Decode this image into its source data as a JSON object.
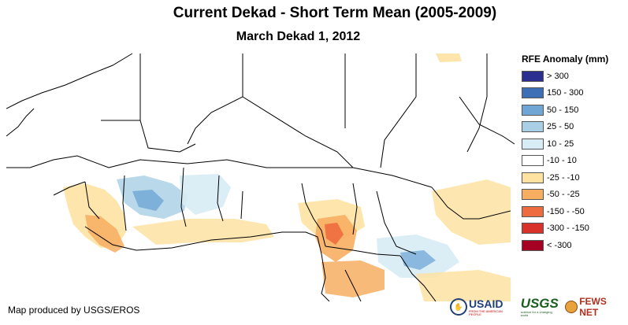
{
  "title": "Current Dekad - Short Term Mean (2005-2009)",
  "subtitle": "March Dekad 1, 2012",
  "legend": {
    "title": "RFE Anomaly (mm)",
    "items": [
      {
        "label": "> 300",
        "color": "#2b2f8f"
      },
      {
        "label": "150 - 300",
        "color": "#3c6fb5"
      },
      {
        "label": "50 - 150",
        "color": "#6fa6d6"
      },
      {
        "label": "25 - 50",
        "color": "#a8cfe6"
      },
      {
        "label": "10 - 25",
        "color": "#d7ecf5"
      },
      {
        "label": "-10 - 10",
        "color": "#ffffff"
      },
      {
        "label": "-25 - -10",
        "color": "#fde2a2"
      },
      {
        "label": "-50 - -25",
        "color": "#f7ae61"
      },
      {
        "label": "-150 - -50",
        "color": "#ee6b3f"
      },
      {
        "label": "-300 - -150",
        "color": "#d8322a"
      },
      {
        "label": "< -300",
        "color": "#a50021"
      }
    ]
  },
  "credit": "Map produced by USGS/EROS",
  "logos": {
    "usaid": "USAID",
    "usaid_tagline": "FROM THE AMERICAN PEOPLE",
    "usgs": "USGS",
    "usgs_tagline": "science for a changing world",
    "fews": "FEWS NET"
  }
}
